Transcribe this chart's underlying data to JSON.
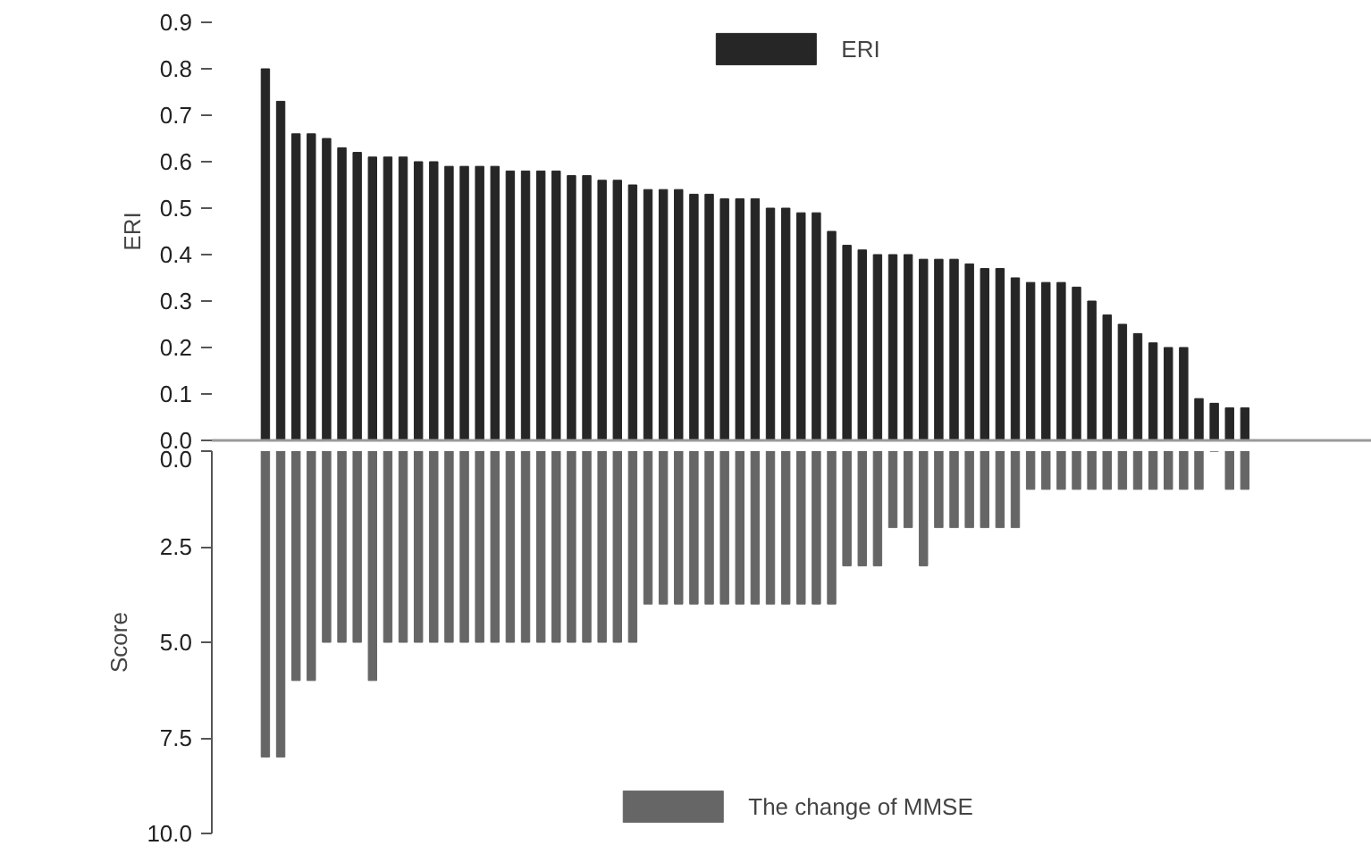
{
  "chart_data": [
    {
      "type": "bar",
      "ylabel": "ERI",
      "categories": [
        null,
        null,
        null,
        null,
        null,
        null,
        null,
        null,
        null,
        null,
        null,
        null,
        null,
        null,
        null,
        null,
        null,
        null,
        null,
        null,
        null,
        null,
        null,
        null,
        null,
        null,
        null,
        null,
        null,
        null,
        null,
        null,
        null,
        null,
        null,
        null,
        null,
        null,
        null,
        null,
        null,
        null,
        null,
        null,
        null,
        null,
        null,
        null,
        null,
        null,
        null,
        null,
        null,
        null,
        null,
        null,
        null,
        null,
        null,
        null,
        null,
        null,
        null,
        null,
        null
      ],
      "series": [
        {
          "name": "ERI",
          "color": "#262626",
          "values": [
            0.8,
            0.73,
            0.66,
            0.66,
            0.65,
            0.63,
            0.62,
            0.61,
            0.61,
            0.61,
            0.6,
            0.6,
            0.59,
            0.59,
            0.59,
            0.59,
            0.58,
            0.58,
            0.58,
            0.58,
            0.57,
            0.57,
            0.56,
            0.56,
            0.55,
            0.54,
            0.54,
            0.54,
            0.53,
            0.53,
            0.52,
            0.52,
            0.52,
            0.5,
            0.5,
            0.49,
            0.49,
            0.45,
            0.42,
            0.41,
            0.4,
            0.4,
            0.4,
            0.39,
            0.39,
            0.39,
            0.38,
            0.37,
            0.37,
            0.35,
            0.34,
            0.34,
            0.34,
            0.33,
            0.3,
            0.27,
            0.25,
            0.23,
            0.21,
            0.2,
            0.2,
            0.09,
            0.08,
            0.07,
            0.07
          ]
        }
      ],
      "ylim": [
        0,
        0.9
      ],
      "yticks": [
        {
          "value": 0,
          "label": "0.0"
        },
        {
          "value": 0.1,
          "label": "0.1"
        },
        {
          "value": 0.2,
          "label": "0.2"
        },
        {
          "value": 0.3,
          "label": "0.3"
        },
        {
          "value": 0.4,
          "label": "0.4"
        },
        {
          "value": 0.5,
          "label": "0.5"
        },
        {
          "value": 0.6,
          "label": "0.6"
        },
        {
          "value": 0.7,
          "label": "0.7"
        },
        {
          "value": 0.8,
          "label": "0.8"
        },
        {
          "value": 0.9,
          "label": "0.9"
        }
      ],
      "legend": "top",
      "tick_labels": "y"
    },
    {
      "type": "bar",
      "ylabel": "Score",
      "categories": [
        null,
        null,
        null,
        null,
        null,
        null,
        null,
        null,
        null,
        null,
        null,
        null,
        null,
        null,
        null,
        null,
        null,
        null,
        null,
        null,
        null,
        null,
        null,
        null,
        null,
        null,
        null,
        null,
        null,
        null,
        null,
        null,
        null,
        null,
        null,
        null,
        null,
        null,
        null,
        null,
        null,
        null,
        null,
        null,
        null,
        null,
        null,
        null,
        null,
        null,
        null,
        null,
        null,
        null,
        null,
        null,
        null,
        null,
        null,
        null,
        null,
        null,
        null,
        null,
        null
      ],
      "series": [
        {
          "name": "The change of MMSE",
          "color": "#666666",
          "values": [
            8,
            8,
            6,
            6,
            5,
            5,
            5,
            6,
            5,
            5,
            5,
            5,
            5,
            5,
            5,
            5,
            5,
            5,
            5,
            5,
            5,
            5,
            5,
            5,
            5,
            4,
            4,
            4,
            4,
            4,
            4,
            4,
            4,
            4,
            4,
            4,
            4,
            4,
            3,
            3,
            3,
            2,
            2,
            3,
            2,
            2,
            2,
            2,
            2,
            2,
            1,
            1,
            1,
            1,
            1,
            1,
            1,
            1,
            1,
            1,
            1,
            1,
            0,
            1,
            1
          ]
        }
      ],
      "ylim": [
        10,
        0
      ],
      "yticks": [
        {
          "value": 0,
          "label": "0.0"
        },
        {
          "value": 2.5,
          "label": "2.5"
        },
        {
          "value": 5,
          "label": "5.0"
        },
        {
          "value": 7.5,
          "label": "7.5"
        },
        {
          "value": 10,
          "label": "10.0"
        }
      ],
      "legend": "bottom",
      "tick_labels": "y"
    }
  ]
}
